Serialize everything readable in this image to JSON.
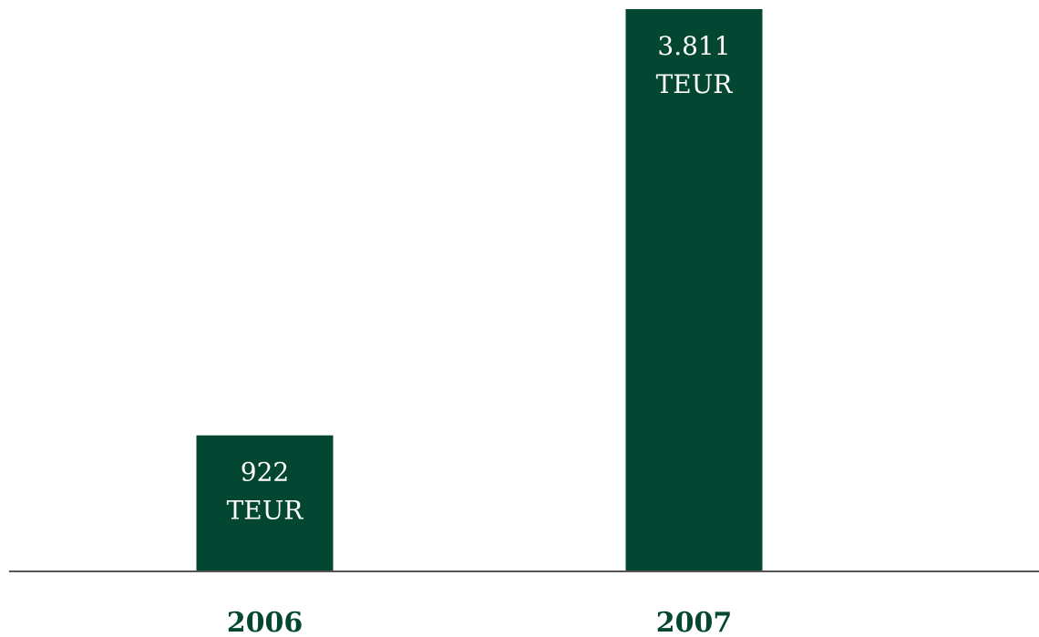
{
  "chart_data": {
    "type": "bar",
    "categories": [
      "2006",
      "2007"
    ],
    "values": [
      922,
      3811
    ],
    "value_labels": [
      "922\nTEUR",
      "3.811\nTEUR"
    ],
    "color": "#034631"
  }
}
